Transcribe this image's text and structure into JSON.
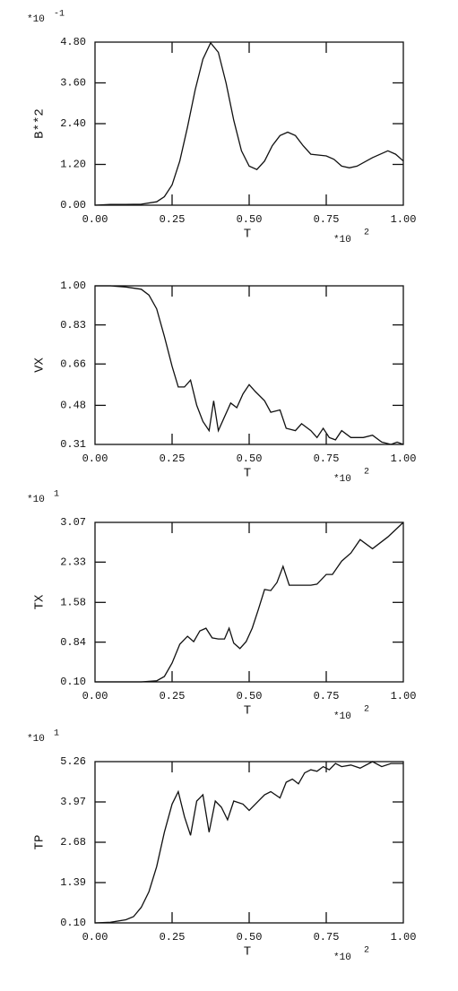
{
  "chart_data": [
    {
      "type": "line",
      "xlabel": "T",
      "ylabel": "B**2",
      "y_multiplier": {
        "base": "*10",
        "exponent": "-1"
      },
      "x_multiplier": {
        "base": "*10",
        "exponent": "2"
      },
      "xlim": [
        0,
        1
      ],
      "ylim": [
        0,
        4.8
      ],
      "xticks": [
        {
          "value": 0,
          "label": "0.00"
        },
        {
          "value": 0.25,
          "label": "0.25"
        },
        {
          "value": 0.5,
          "label": "0.50"
        },
        {
          "value": 0.75,
          "label": "0.75"
        },
        {
          "value": 1,
          "label": "1.00"
        }
      ],
      "yticks": [
        {
          "value": 0,
          "label": "0.00"
        },
        {
          "value": 1.2,
          "label": "1.20"
        },
        {
          "value": 2.4,
          "label": "2.40"
        },
        {
          "value": 3.6,
          "label": "3.60"
        },
        {
          "value": 4.8,
          "label": "4.80"
        }
      ],
      "color": "#111",
      "x": [
        0,
        0.05,
        0.1,
        0.15,
        0.2,
        0.225,
        0.25,
        0.275,
        0.3,
        0.325,
        0.35,
        0.375,
        0.4,
        0.425,
        0.45,
        0.475,
        0.5,
        0.525,
        0.55,
        0.575,
        0.6,
        0.625,
        0.65,
        0.675,
        0.7,
        0.75,
        0.775,
        0.8,
        0.825,
        0.85,
        0.9,
        0.95,
        0.975,
        1.0
      ],
      "values": [
        0,
        0.02,
        0.02,
        0.03,
        0.1,
        0.25,
        0.6,
        1.3,
        2.3,
        3.4,
        4.3,
        4.78,
        4.5,
        3.6,
        2.5,
        1.6,
        1.15,
        1.05,
        1.3,
        1.75,
        2.05,
        2.15,
        2.05,
        1.75,
        1.5,
        1.45,
        1.35,
        1.15,
        1.1,
        1.15,
        1.4,
        1.6,
        1.5,
        1.3
      ]
    },
    {
      "type": "line",
      "xlabel": "T",
      "ylabel": "VX",
      "x_multiplier": {
        "base": "*10",
        "exponent": "2"
      },
      "xlim": [
        0,
        1
      ],
      "ylim": [
        0.31,
        1.0
      ],
      "xticks": [
        {
          "value": 0,
          "label": "0.00"
        },
        {
          "value": 0.25,
          "label": "0.25"
        },
        {
          "value": 0.5,
          "label": "0.50"
        },
        {
          "value": 0.75,
          "label": "0.75"
        },
        {
          "value": 1,
          "label": "1.00"
        }
      ],
      "yticks": [
        {
          "value": 0.31,
          "label": "0.31"
        },
        {
          "value": 0.48,
          "label": "0.48"
        },
        {
          "value": 0.66,
          "label": "0.66"
        },
        {
          "value": 0.83,
          "label": "0.83"
        },
        {
          "value": 1.0,
          "label": "1.00"
        }
      ],
      "color": "#111",
      "x": [
        0,
        0.05,
        0.1,
        0.15,
        0.175,
        0.2,
        0.225,
        0.25,
        0.27,
        0.29,
        0.31,
        0.33,
        0.35,
        0.37,
        0.385,
        0.4,
        0.42,
        0.44,
        0.46,
        0.48,
        0.5,
        0.52,
        0.55,
        0.57,
        0.6,
        0.62,
        0.65,
        0.67,
        0.7,
        0.72,
        0.74,
        0.76,
        0.78,
        0.8,
        0.83,
        0.87,
        0.9,
        0.93,
        0.96,
        0.98,
        1.0
      ],
      "values": [
        1.0,
        1.0,
        0.995,
        0.985,
        0.96,
        0.9,
        0.78,
        0.65,
        0.56,
        0.56,
        0.59,
        0.48,
        0.41,
        0.37,
        0.5,
        0.37,
        0.43,
        0.49,
        0.47,
        0.53,
        0.57,
        0.54,
        0.5,
        0.45,
        0.46,
        0.38,
        0.37,
        0.4,
        0.37,
        0.34,
        0.38,
        0.34,
        0.33,
        0.37,
        0.34,
        0.34,
        0.35,
        0.32,
        0.31,
        0.32,
        0.31
      ]
    },
    {
      "type": "line",
      "xlabel": "T",
      "ylabel": "TX",
      "y_multiplier": {
        "base": "*10",
        "exponent": "1"
      },
      "x_multiplier": {
        "base": "*10",
        "exponent": "2"
      },
      "xlim": [
        0,
        1
      ],
      "ylim": [
        0.1,
        3.07
      ],
      "xticks": [
        {
          "value": 0,
          "label": "0.00"
        },
        {
          "value": 0.25,
          "label": "0.25"
        },
        {
          "value": 0.5,
          "label": "0.50"
        },
        {
          "value": 0.75,
          "label": "0.75"
        },
        {
          "value": 1,
          "label": "1.00"
        }
      ],
      "yticks": [
        {
          "value": 0.1,
          "label": "0.10"
        },
        {
          "value": 0.84,
          "label": "0.84"
        },
        {
          "value": 1.58,
          "label": "1.58"
        },
        {
          "value": 2.33,
          "label": "2.33"
        },
        {
          "value": 3.07,
          "label": "3.07"
        }
      ],
      "color": "#111",
      "x": [
        0,
        0.15,
        0.2,
        0.225,
        0.25,
        0.275,
        0.3,
        0.32,
        0.34,
        0.36,
        0.38,
        0.4,
        0.42,
        0.435,
        0.45,
        0.47,
        0.49,
        0.51,
        0.53,
        0.55,
        0.57,
        0.59,
        0.61,
        0.63,
        0.66,
        0.7,
        0.72,
        0.75,
        0.77,
        0.8,
        0.83,
        0.86,
        0.9,
        0.95,
        1.0
      ],
      "values": [
        0.1,
        0.1,
        0.12,
        0.2,
        0.45,
        0.8,
        0.95,
        0.85,
        1.05,
        1.1,
        0.92,
        0.9,
        0.9,
        1.1,
        0.82,
        0.72,
        0.85,
        1.1,
        1.45,
        1.82,
        1.8,
        1.95,
        2.25,
        1.9,
        1.9,
        1.9,
        1.92,
        2.1,
        2.1,
        2.35,
        2.5,
        2.75,
        2.58,
        2.8,
        3.07
      ]
    },
    {
      "type": "line",
      "xlabel": "T",
      "ylabel": "TP",
      "y_multiplier": {
        "base": "*10",
        "exponent": "1"
      },
      "x_multiplier": {
        "base": "*10",
        "exponent": "2"
      },
      "xlim": [
        0,
        1
      ],
      "ylim": [
        0.1,
        5.26
      ],
      "xticks": [
        {
          "value": 0,
          "label": "0.00"
        },
        {
          "value": 0.25,
          "label": "0.25"
        },
        {
          "value": 0.5,
          "label": "0.50"
        },
        {
          "value": 0.75,
          "label": "0.75"
        },
        {
          "value": 1,
          "label": "1.00"
        }
      ],
      "yticks": [
        {
          "value": 0.1,
          "label": "0.10"
        },
        {
          "value": 1.39,
          "label": "1.39"
        },
        {
          "value": 2.68,
          "label": "2.68"
        },
        {
          "value": 3.97,
          "label": "3.97"
        },
        {
          "value": 5.26,
          "label": "5.26"
        }
      ],
      "color": "#111",
      "x": [
        0,
        0.05,
        0.1,
        0.125,
        0.15,
        0.175,
        0.2,
        0.225,
        0.25,
        0.27,
        0.29,
        0.31,
        0.33,
        0.35,
        0.37,
        0.39,
        0.41,
        0.43,
        0.45,
        0.48,
        0.5,
        0.52,
        0.55,
        0.57,
        0.6,
        0.62,
        0.64,
        0.66,
        0.68,
        0.7,
        0.72,
        0.74,
        0.76,
        0.78,
        0.8,
        0.83,
        0.86,
        0.9,
        0.93,
        0.96,
        1.0
      ],
      "values": [
        0.1,
        0.12,
        0.2,
        0.3,
        0.6,
        1.1,
        1.9,
        3.0,
        3.9,
        4.3,
        3.5,
        2.9,
        4.0,
        4.2,
        3.0,
        4.0,
        3.8,
        3.4,
        4.0,
        3.9,
        3.7,
        3.9,
        4.2,
        4.3,
        4.1,
        4.6,
        4.7,
        4.55,
        4.9,
        5.0,
        4.95,
        5.1,
        5.0,
        5.2,
        5.1,
        5.15,
        5.05,
        5.26,
        5.1,
        5.2,
        5.2
      ]
    }
  ]
}
